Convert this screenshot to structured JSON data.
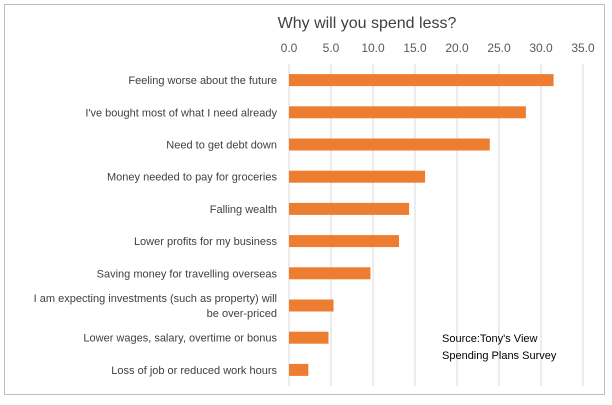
{
  "chart_data": {
    "type": "bar",
    "orientation": "horizontal",
    "title": "Why will you spend less?",
    "categories": [
      "Feeling worse about the future",
      "I've bought most of what I need already",
      "Need to get debt down",
      "Money needed to pay for groceries",
      "Falling wealth",
      "Lower profits for my business",
      "Saving money for travelling overseas",
      [
        "I am expecting investments (such as property) will",
        "be over-priced"
      ],
      "Lower wages, salary, overtime or bonus",
      "Loss of job or reduced work hours"
    ],
    "values": [
      31.5,
      28.2,
      23.9,
      16.2,
      14.3,
      13.1,
      9.7,
      5.3,
      4.7,
      2.3
    ],
    "xlim": [
      0,
      35
    ],
    "xticks": [
      "0.0",
      "5.0",
      "10.0",
      "15.0",
      "20.0",
      "25.0",
      "30.0",
      "35.0"
    ],
    "xlabel": "",
    "ylabel": "",
    "grid": true,
    "bar_color": "#ED7D31",
    "annotation": [
      "Source:Tony's View",
      "Spending Plans Survey"
    ]
  }
}
